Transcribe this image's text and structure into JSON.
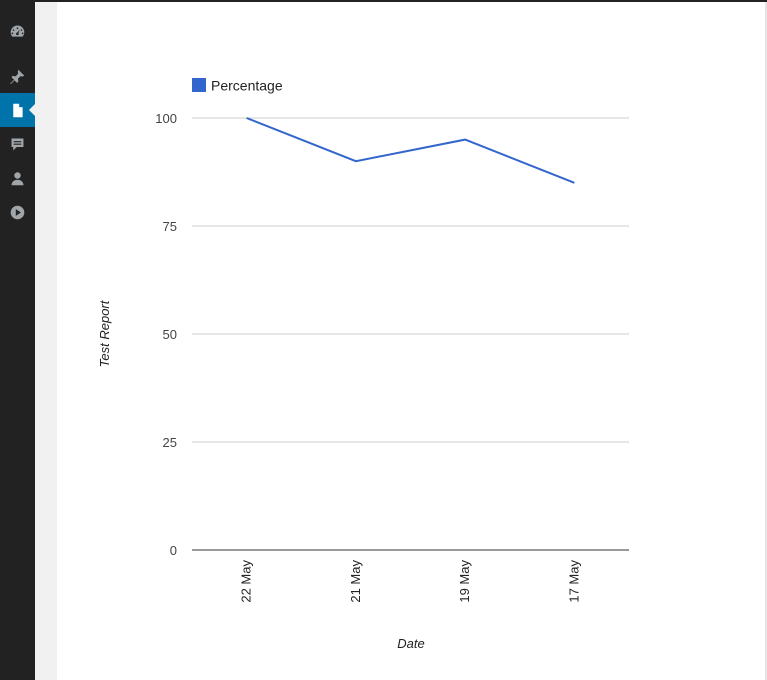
{
  "sidebar": {
    "items": [
      {
        "icon": "dashboard-icon",
        "active": false
      },
      {
        "icon": "pin-icon",
        "active": false
      },
      {
        "icon": "page-icon",
        "active": true
      },
      {
        "icon": "comments-icon",
        "active": false
      },
      {
        "icon": "user-icon",
        "active": false
      },
      {
        "icon": "play-icon",
        "active": false
      }
    ]
  },
  "colors": {
    "sidebar_bg": "#222222",
    "sidebar_active": "#0073aa",
    "sidebar_icon": "#a0a5aa",
    "series": "#3366cc",
    "gridline": "#cccccc",
    "axis_text": "#444444"
  },
  "chart_data": {
    "type": "line",
    "categories": [
      "22 May",
      "21 May",
      "19 May",
      "17 May"
    ],
    "series": [
      {
        "name": "Percentage",
        "values": [
          100,
          90,
          95,
          85
        ]
      }
    ],
    "xlabel": "Date",
    "ylabel": "Test Report",
    "ylim": [
      0,
      100
    ],
    "yticks": [
      0,
      25,
      50,
      75,
      100
    ],
    "legend": "top-left",
    "grid": true
  }
}
